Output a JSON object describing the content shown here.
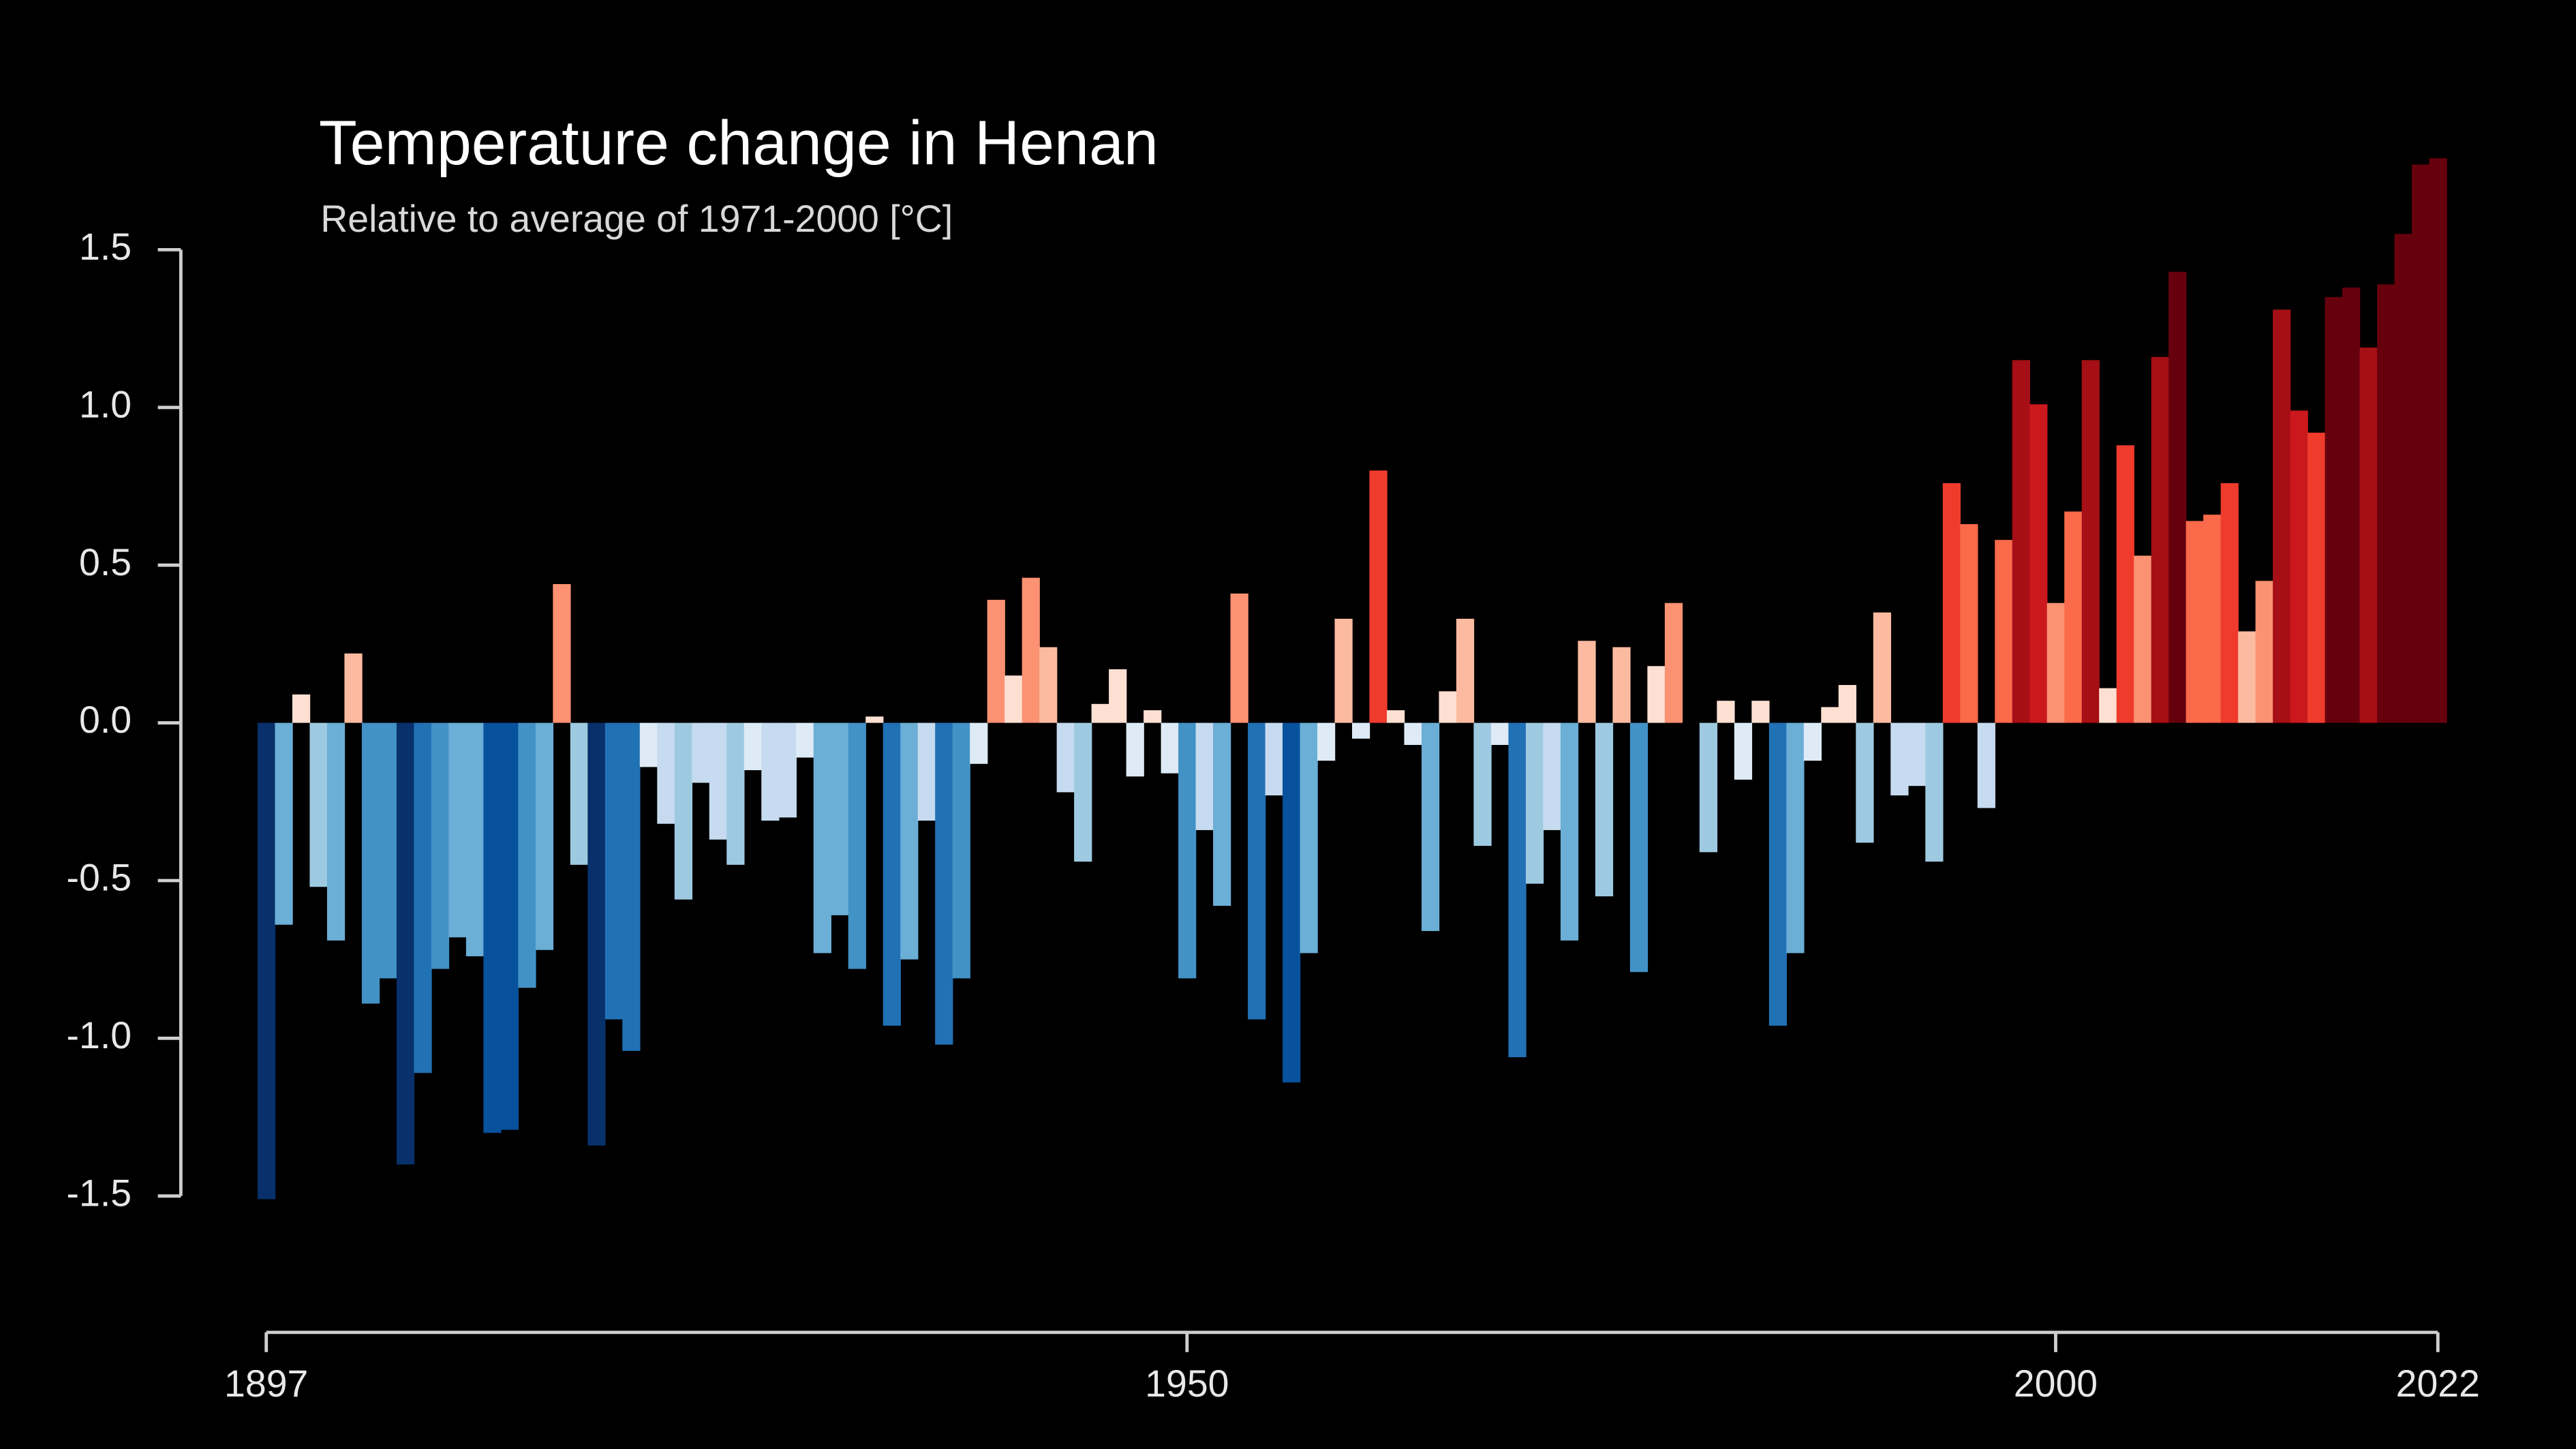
{
  "chart_data": {
    "type": "bar",
    "title": "Temperature change in Henan",
    "subtitle": "Relative to average of 1971-2000  [°C]",
    "x": [
      1897,
      1898,
      1899,
      1900,
      1901,
      1902,
      1903,
      1904,
      1905,
      1906,
      1907,
      1908,
      1909,
      1910,
      1911,
      1912,
      1913,
      1914,
      1915,
      1916,
      1917,
      1918,
      1919,
      1920,
      1921,
      1922,
      1923,
      1924,
      1925,
      1926,
      1927,
      1928,
      1929,
      1930,
      1931,
      1932,
      1933,
      1934,
      1935,
      1936,
      1937,
      1938,
      1939,
      1940,
      1941,
      1942,
      1943,
      1944,
      1945,
      1946,
      1947,
      1948,
      1949,
      1950,
      1951,
      1952,
      1953,
      1954,
      1955,
      1956,
      1957,
      1958,
      1959,
      1960,
      1961,
      1962,
      1963,
      1964,
      1965,
      1966,
      1967,
      1968,
      1969,
      1970,
      1971,
      1972,
      1973,
      1974,
      1975,
      1976,
      1977,
      1978,
      1979,
      1980,
      1981,
      1982,
      1983,
      1984,
      1985,
      1986,
      1987,
      1988,
      1989,
      1990,
      1991,
      1992,
      1993,
      1994,
      1995,
      1996,
      1997,
      1998,
      1999,
      2000,
      2001,
      2002,
      2003,
      2004,
      2005,
      2006,
      2007,
      2008,
      2009,
      2010,
      2011,
      2012,
      2013,
      2014,
      2015,
      2016,
      2017,
      2018,
      2019,
      2020,
      2021,
      2022
    ],
    "values": [
      -1.51,
      -0.64,
      0.09,
      -0.52,
      -0.69,
      0.22,
      -0.89,
      -0.81,
      -1.4,
      -1.11,
      -0.78,
      -0.68,
      -0.74,
      -1.3,
      -1.29,
      -0.84,
      -0.72,
      0.44,
      -0.45,
      -1.34,
      -0.94,
      -1.04,
      -0.14,
      -0.32,
      -0.56,
      -0.19,
      -0.37,
      -0.45,
      -0.15,
      -0.31,
      -0.3,
      -0.11,
      -0.73,
      -0.61,
      -0.78,
      0.02,
      -0.96,
      -0.75,
      -0.31,
      -1.02,
      -0.81,
      -0.13,
      0.39,
      0.15,
      0.46,
      0.24,
      -0.22,
      -0.44,
      0.06,
      0.17,
      -0.17,
      0.04,
      -0.16,
      -0.81,
      -0.34,
      -0.58,
      0.41,
      -0.94,
      -0.23,
      -1.14,
      -0.73,
      -0.12,
      0.33,
      -0.05,
      0.8,
      0.04,
      -0.07,
      -0.66,
      0.1,
      0.33,
      -0.39,
      -0.07,
      -1.06,
      -0.51,
      -0.34,
      -0.69,
      0.26,
      -0.55,
      0.24,
      -0.79,
      0.18,
      0.38,
      0.0,
      -0.41,
      0.07,
      -0.18,
      0.07,
      -0.96,
      -0.73,
      -0.12,
      0.05,
      0.12,
      -0.38,
      0.35,
      -0.23,
      -0.2,
      -0.44,
      0.76,
      0.63,
      -0.27,
      0.58,
      1.15,
      1.01,
      0.38,
      0.67,
      1.15,
      0.11,
      0.88,
      0.53,
      1.16,
      1.43,
      0.64,
      0.66,
      0.76,
      0.29,
      0.45,
      1.31,
      0.99,
      0.92,
      1.35,
      1.38,
      1.19,
      1.39,
      1.55,
      1.77,
      1.79
    ],
    "colors": [
      "#08306b",
      "#08519c",
      "#2171b5",
      "#4292c6",
      "#6baed6",
      "#9ecae1",
      "#c6dbef",
      "#deebf7",
      "#fee0d2",
      "#fcbba1",
      "#fc9272",
      "#fb6a4a",
      "#ef3b2c",
      "#cb181d",
      "#a50f15",
      "#67000d"
    ],
    "xlim": [
      1897,
      2022
    ],
    "xticks": [
      1897,
      1950,
      2000,
      2022
    ],
    "ylim": [
      -1.93,
      2.2
    ],
    "yticks": [
      1.5,
      {
        "value": 1,
        "label": "1.0"
      },
      0.5,
      {
        "value": 0,
        "label": "0.0"
      },
      -0.5,
      {
        "value": -1,
        "label": "-1.0"
      },
      -1.5
    ]
  }
}
